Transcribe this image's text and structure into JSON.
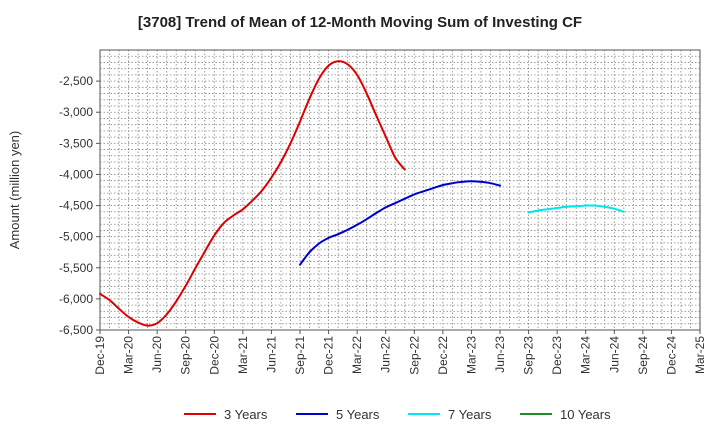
{
  "chart_data": {
    "type": "line",
    "title": "[3708]  Trend of Mean of 12-Month Moving Sum of Investing CF",
    "xlabel": "",
    "ylabel": "Amount (million yen)",
    "ylim": [
      -6500,
      -2000
    ],
    "yticks": [
      -6500,
      -6000,
      -5500,
      -5000,
      -4500,
      -4000,
      -3500,
      -3000,
      -2500
    ],
    "ytick_labels": [
      "-6,500",
      "-6,000",
      "-5,500",
      "-5,000",
      "-4,500",
      "-4,000",
      "-3,500",
      "-3,000",
      "-2,500"
    ],
    "x_tick_labels": [
      "Dec-19",
      "Mar-20",
      "Jun-20",
      "Sep-20",
      "Dec-20",
      "Mar-21",
      "Jun-21",
      "Sep-21",
      "Dec-21",
      "Mar-22",
      "Jun-22",
      "Sep-22",
      "Dec-22",
      "Mar-23",
      "Jun-23",
      "Sep-23",
      "Dec-23",
      "Mar-24",
      "Jun-24",
      "Sep-24",
      "Dec-24",
      "Mar-25"
    ],
    "grid": true,
    "legend_position": "bottom",
    "series": [
      {
        "name": "3 Years",
        "color": "#dd0000",
        "start_index": 0,
        "values": [
          -5920,
          -6020,
          -6160,
          -6290,
          -6380,
          -6430,
          -6390,
          -6250,
          -6040,
          -5790,
          -5510,
          -5240,
          -4980,
          -4780,
          -4660,
          -4560,
          -4420,
          -4260,
          -4050,
          -3800,
          -3500,
          -3150,
          -2780,
          -2460,
          -2250,
          -2180,
          -2230,
          -2400,
          -2700,
          -3050,
          -3390,
          -3730,
          -3920
        ]
      },
      {
        "name": "5 Years",
        "color": "#0000cc",
        "start_index": 21,
        "values": [
          -5450,
          -5250,
          -5110,
          -5020,
          -4960,
          -4890,
          -4810,
          -4720,
          -4620,
          -4530,
          -4460,
          -4390,
          -4320,
          -4270,
          -4220,
          -4170,
          -4140,
          -4120,
          -4110,
          -4120,
          -4140,
          -4180
        ]
      },
      {
        "name": "7 Years",
        "color": "#00e5ee",
        "start_index": 45,
        "values": [
          -4610,
          -4580,
          -4560,
          -4540,
          -4520,
          -4510,
          -4500,
          -4500,
          -4520,
          -4550,
          -4600
        ]
      },
      {
        "name": "10 Years",
        "color": "#228b22",
        "start_index": 0,
        "values": []
      }
    ]
  }
}
